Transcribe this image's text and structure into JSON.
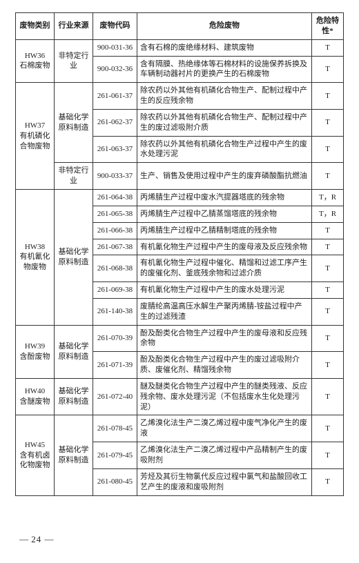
{
  "headers": {
    "category": "废物类别",
    "source": "行业来源",
    "code": "废物代码",
    "desc": "危险废物",
    "hazard": "危险特性*"
  },
  "groups": [
    {
      "category": "HW36\n石棉废物",
      "sources": [
        {
          "source": "非特定行业",
          "rows": [
            {
              "code": "900-031-36",
              "desc": "含有石棉的废绝缘材料、建筑废物",
              "hazard": "T"
            },
            {
              "code": "900-032-36",
              "desc": "含有隔膜、热绝缘体等石棉材料的设施保养拆换及车辆制动器衬片的更换产生的石棉废物",
              "hazard": "T"
            }
          ]
        }
      ]
    },
    {
      "category": "HW37\n有机磷化合物废物",
      "sources": [
        {
          "source": "基础化学原料制造",
          "rows": [
            {
              "code": "261-061-37",
              "desc": "除农药以外其他有机磷化合物生产、配制过程中产生的反应残余物",
              "hazard": "T"
            },
            {
              "code": "261-062-37",
              "desc": "除农药以外其他有机磷化合物生产、配制过程中产生的废过滤吸附介质",
              "hazard": "T"
            },
            {
              "code": "261-063-37",
              "desc": "除农药以外其他有机磷化合物生产过程中产生的废水处理污泥",
              "hazard": "T"
            }
          ]
        },
        {
          "source": "非特定行业",
          "rows": [
            {
              "code": "900-033-37",
              "desc": "生产、销售及使用过程中产生的废弃磷酸酯抗燃油",
              "hazard": "T"
            }
          ]
        }
      ]
    },
    {
      "category": "HW38\n有机氰化物废物",
      "sources": [
        {
          "source": "基础化学原料制造",
          "rows": [
            {
              "code": "261-064-38",
              "desc": "丙烯腈生产过程中废水汽提器塔底的残余物",
              "hazard": "T，R"
            },
            {
              "code": "261-065-38",
              "desc": "丙烯腈生产过程中乙腈蒸馏塔底的残余物",
              "hazard": "T，R"
            },
            {
              "code": "261-066-38",
              "desc": "丙烯腈生产过程中乙腈精制塔底的残余物",
              "hazard": "T"
            },
            {
              "code": "261-067-38",
              "desc": "有机氰化物生产过程中产生的废母液及反应残余物",
              "hazard": "T"
            },
            {
              "code": "261-068-38",
              "desc": "有机氰化物生产过程中催化、精馏和过滤工序产生的废催化剂、釜底残余物和过滤介质",
              "hazard": "T"
            },
            {
              "code": "261-069-38",
              "desc": "有机氰化物生产过程中产生的废水处理污泥",
              "hazard": "T"
            },
            {
              "code": "261-140-38",
              "desc": "废腈纶高温高压水解生产聚丙烯腈-铵盐过程中产生的过滤残渣",
              "hazard": "T"
            }
          ]
        }
      ]
    },
    {
      "category": "HW39\n含酚废物",
      "sources": [
        {
          "source": "基础化学原料制造",
          "rows": [
            {
              "code": "261-070-39",
              "desc": "酚及酚类化合物生产过程中产生的废母液和反应残余物",
              "hazard": "T"
            },
            {
              "code": "261-071-39",
              "desc": "酚及酚类化合物生产过程中产生的废过滤吸附介质、废催化剂、精馏残余物",
              "hazard": "T"
            }
          ]
        }
      ]
    },
    {
      "category": "HW40\n含醚废物",
      "sources": [
        {
          "source": "基础化学原料制造",
          "rows": [
            {
              "code": "261-072-40",
              "desc": "醚及醚类化合物生产过程中产生的醚类残液、反应残余物、废水处理污泥（不包括废水生化处理污泥）",
              "hazard": "T"
            }
          ]
        }
      ]
    },
    {
      "category": "HW45\n含有机卤化物废物",
      "sources": [
        {
          "source": "基础化学原料制造",
          "rows": [
            {
              "code": "261-078-45",
              "desc": "乙烯溴化法生产二溴乙烯过程中废气净化产生的废液",
              "hazard": "T"
            },
            {
              "code": "261-079-45",
              "desc": "乙烯溴化法生产二溴乙烯过程中产品精制产生的废吸附剂",
              "hazard": "T"
            },
            {
              "code": "261-080-45",
              "desc": "芳烃及其衍生物氯代反应过程中氯气和盐酸回收工艺产生的废液和废吸附剂",
              "hazard": "T"
            }
          ]
        }
      ]
    }
  ],
  "page_number": "24"
}
